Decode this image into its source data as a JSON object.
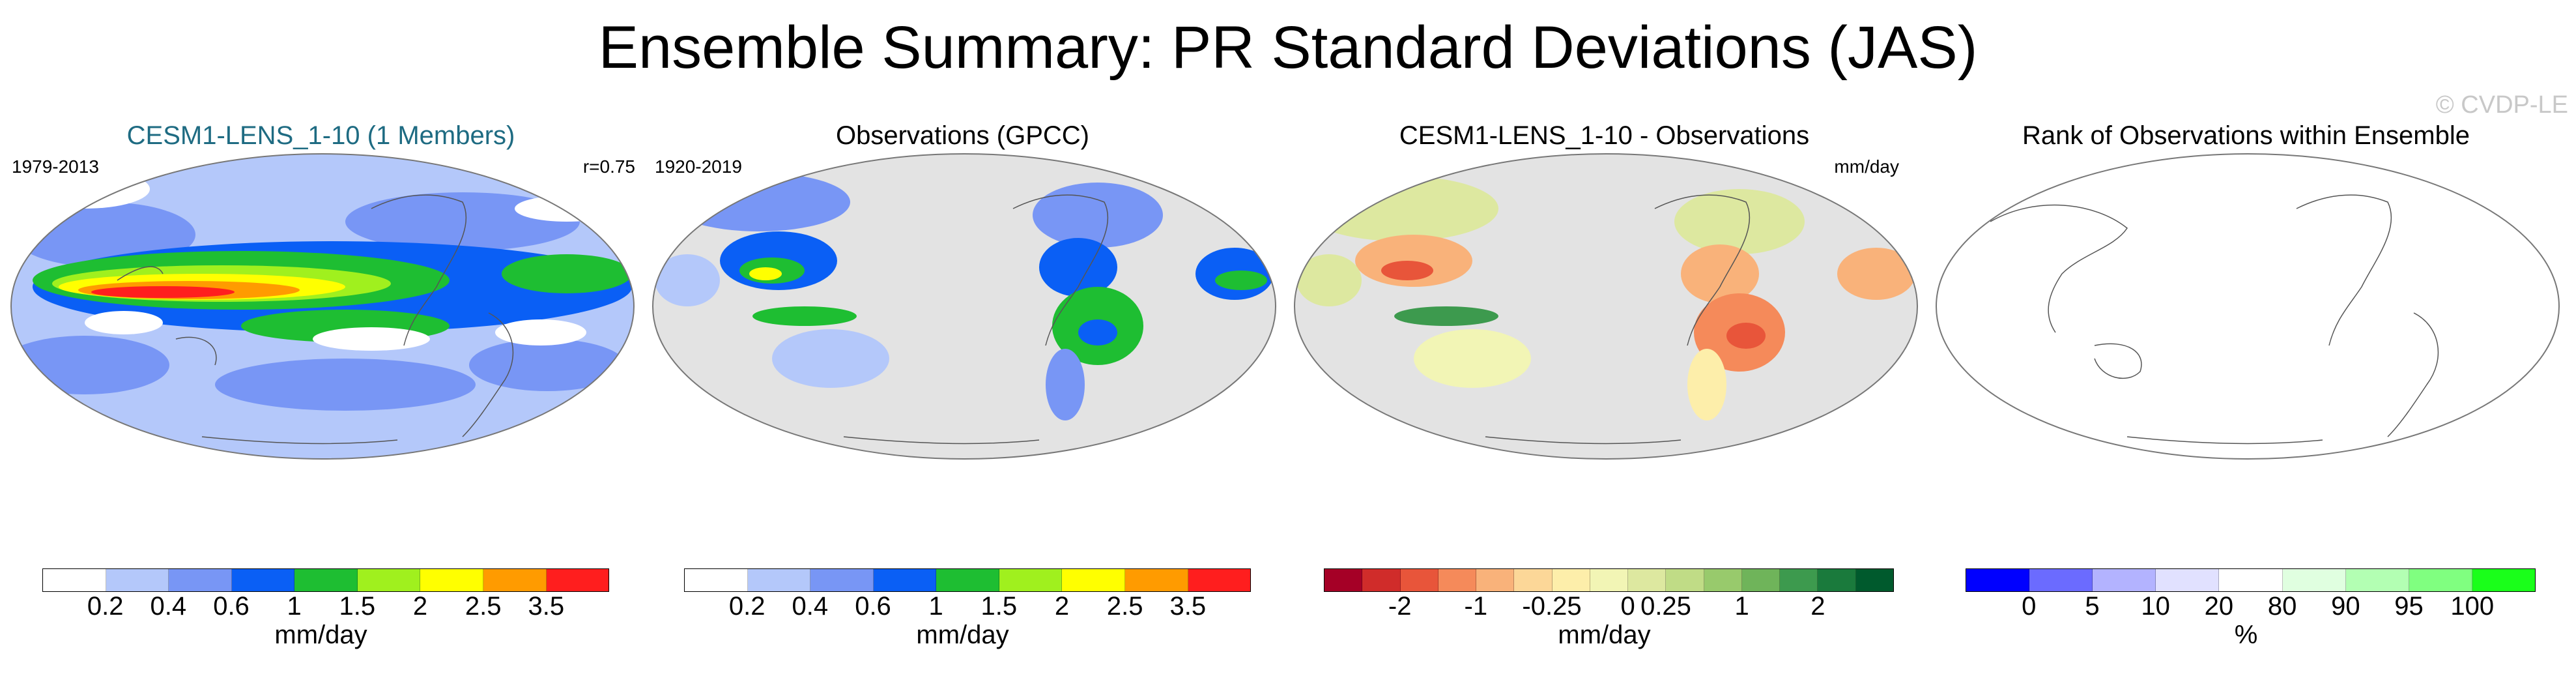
{
  "title": "Ensemble Summary: PR Standard Deviations (JAS)",
  "watermark": "© CVDP-LE",
  "panels": [
    {
      "title": "CESM1-LENS_1-10 (1 Members)",
      "left_label": "1979-2013",
      "right_label": "r=0.75",
      "colorbar": {
        "colors": [
          "#ffffff",
          "#b4c8fa",
          "#7896f5",
          "#0a5ff5",
          "#1ebe32",
          "#a0f01e",
          "#ffff00",
          "#ff9b00",
          "#ff1e1e"
        ],
        "ticks": [
          "0.2",
          "0.4",
          "0.6",
          "1",
          "1.5",
          "2",
          "2.5",
          "3.5"
        ],
        "unit": "mm/day"
      }
    },
    {
      "title": "Observations (GPCC)",
      "left_label": "1920-2019",
      "right_label": "",
      "colorbar": {
        "colors": [
          "#ffffff",
          "#b4c8fa",
          "#7896f5",
          "#0a5ff5",
          "#1ebe32",
          "#a0f01e",
          "#ffff00",
          "#ff9b00",
          "#ff1e1e"
        ],
        "ticks": [
          "0.2",
          "0.4",
          "0.6",
          "1",
          "1.5",
          "2",
          "2.5",
          "3.5"
        ],
        "unit": "mm/day"
      }
    },
    {
      "title": "CESM1-LENS_1-10 - Observations",
      "left_label": "",
      "right_label": "mm/day",
      "colorbar": {
        "colors": [
          "#a50026",
          "#d02c2a",
          "#e8553a",
          "#f58a5a",
          "#f9b27a",
          "#fcd798",
          "#fdeeaa",
          "#f2f5b5",
          "#dde8a0",
          "#c0dc86",
          "#98ca6c",
          "#6fb45a",
          "#3d9a4e",
          "#1a7a3c",
          "#005a2d"
        ],
        "ticks": [
          "-2",
          "-1",
          "-0.25",
          "0",
          "0.25",
          "1",
          "2"
        ],
        "unit": "mm/day"
      }
    },
    {
      "title": "Rank of Observations within Ensemble",
      "left_label": "",
      "right_label": "--%",
      "colorbar": {
        "colors": [
          "#0000ff",
          "#6b6bff",
          "#b3b3ff",
          "#e1e1ff",
          "#ffffff",
          "#e0ffe0",
          "#b3ffb3",
          "#80ff80",
          "#1aff1a"
        ],
        "ticks": [
          "0",
          "5",
          "10",
          "20",
          "80",
          "90",
          "95",
          "100"
        ],
        "unit": "%"
      }
    }
  ]
}
